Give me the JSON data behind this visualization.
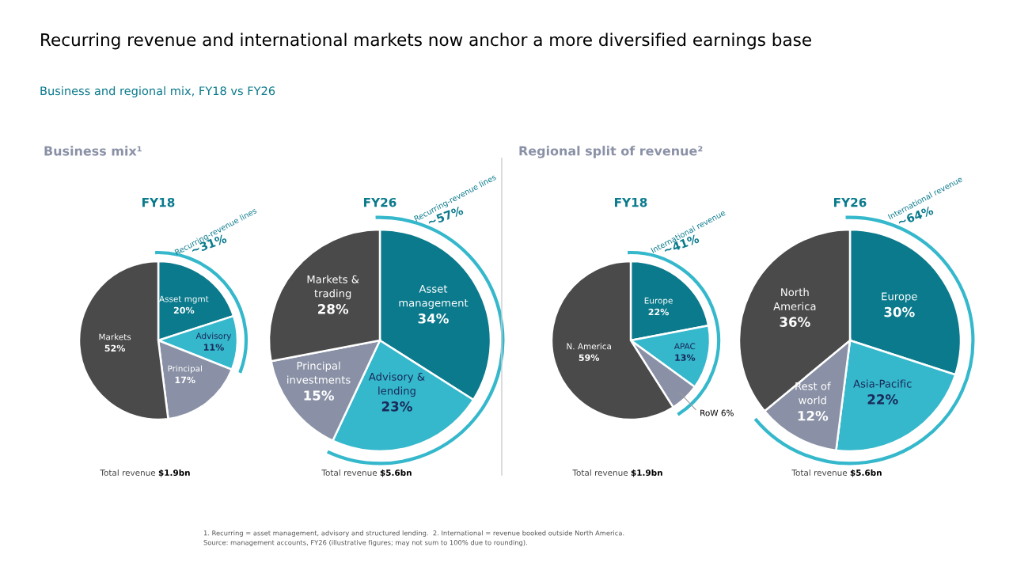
{
  "chart_data": [
    {
      "type": "pie",
      "title": "FY18",
      "categories": [
        "Asset mgmt",
        "Advisory",
        "Principal",
        "Markets"
      ],
      "values": [
        20,
        11,
        17,
        52
      ],
      "value_labels": [
        "20%",
        "11%",
        "17%",
        "52%"
      ],
      "colors": [
        "#0a7a8c",
        "#35b8cc",
        "#8a91a6",
        "#4a4a4a"
      ],
      "annotations": [
        "Total revenue $1.9bn",
        "Business mix¹",
        "Recurring revenue and international markets now anchor a more diversified earnings base",
        "Business and regional mix, FY18 vs FY26",
        "1. Recurring = asset management, advisory and structured lending.  2. International = revenue booked outside North America.",
        "Source: management accounts, FY26 (illustrative figures; may not sum to 100% due to rounding).",
        {
          "text": "Recurring-revenue lines\n~31%",
          "x": "Advisory"
        }
      ]
    },
    {
      "type": "pie",
      "title": "FY26",
      "categories": [
        "Asset\nmanagement",
        "Advisory &\nlending",
        "Principal\ninvestments",
        "Markets &\ntrading"
      ],
      "values": [
        34,
        23,
        15,
        28
      ],
      "value_labels": [
        "34%",
        "23%",
        "15%",
        "28%"
      ],
      "colors": [
        "#0a7a8c",
        "#35b8cc",
        "#8a91a6",
        "#4a4a4a"
      ],
      "annotations": [
        "Total revenue $5.6bn",
        {
          "text": "Recurring-revenue lines\n~57%",
          "x": "Advisory &\nlending"
        }
      ]
    },
    {
      "type": "pie",
      "title": "FY18",
      "categories": [
        "Europe",
        "APAC",
        "RoW",
        "N. America"
      ],
      "values": [
        22,
        13,
        6,
        59
      ],
      "value_labels": [
        "22%",
        "13%",
        "6%",
        "59%"
      ],
      "colors": [
        "#0a7a8c",
        "#35b8cc",
        "#8a91a6",
        "#4a4a4a"
      ],
      "annotations": [
        "Total revenue $1.9bn",
        "Regional split of revenue²",
        {
          "text": "International revenue\n~41%",
          "x": "RoW"
        }
      ]
    },
    {
      "type": "pie",
      "title": "FY26",
      "categories": [
        "Europe",
        "Asia-Pacific",
        "Rest of\nworld",
        "North\nAmerica"
      ],
      "values": [
        30,
        22,
        12,
        36
      ],
      "value_labels": [
        "30%",
        "22%",
        "12%",
        "36%"
      ],
      "colors": [
        "#0a7a8c",
        "#35b8cc",
        "#8a91a6",
        "#4a4a4a"
      ],
      "annotations": [
        "Total revenue $5.6bn",
        {
          "text": "International revenue\n~64%",
          "x": "Rest of\nworld"
        }
      ]
    }
  ]
}
